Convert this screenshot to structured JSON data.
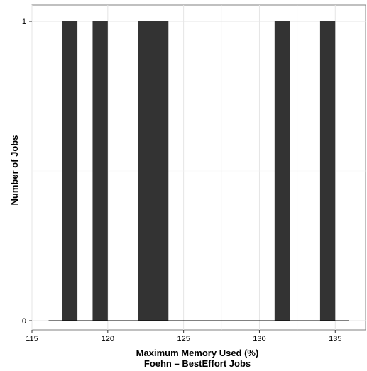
{
  "chart_data": {
    "type": "bar",
    "subtype": "histogram",
    "x": [
      117.5,
      119.5,
      122.5,
      123.5,
      131.5,
      134.5
    ],
    "bin_width": 1,
    "values": [
      1,
      1,
      1,
      1,
      1,
      1
    ],
    "xlim": [
      115,
      137
    ],
    "ylim": [
      0,
      1
    ],
    "x_ticks": [
      115,
      120,
      125,
      130,
      135
    ],
    "y_ticks": [
      0,
      1
    ],
    "x_tick_labels": [
      "115",
      "120",
      "125",
      "130",
      "135"
    ],
    "y_tick_labels": [
      "0",
      "1"
    ],
    "xlabel": "Maximum Memory Used (%)",
    "subtitle": "Foehn – BestEffort Jobs",
    "ylabel": "Number of Jobs",
    "baseline_range": [
      116.1,
      135.9
    ],
    "grid": true,
    "legend": "none",
    "colors": {
      "bar": "#333333",
      "grid": "#e5e5e5",
      "panel_border": "#808080",
      "baseline": "#000000"
    }
  }
}
